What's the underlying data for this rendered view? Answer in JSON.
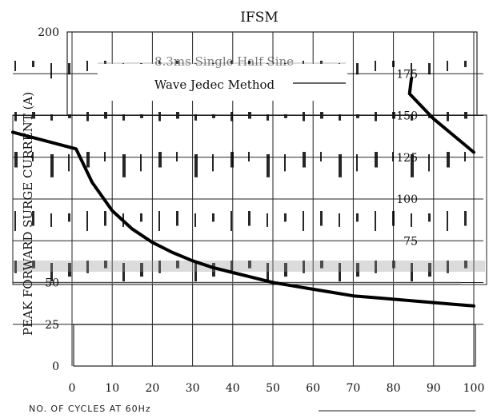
{
  "chart_data": {
    "type": "line",
    "title": "IFSM",
    "annotation": "8.3ms Single Half Sine Wave Jedec Method",
    "annotation_line1": "8.3ms Single Half Sine",
    "annotation_line2": "Wave Jedec Method",
    "ylabel": "PEAK FORWARD SURGE CURRENT (A)",
    "xlabel": "NO. OF CYCLES AT 60Hz",
    "xlim": [
      0,
      100
    ],
    "ylim": [
      0,
      200
    ],
    "x_ticks": [
      0,
      10,
      20,
      30,
      40,
      50,
      60,
      70,
      80,
      90,
      100
    ],
    "y_ticks_left": [
      0,
      25,
      50,
      200
    ],
    "y_ticks_inner": [
      75,
      100,
      125,
      150,
      175
    ],
    "grid": true,
    "series": [
      {
        "x": [
          1,
          5,
          10,
          15,
          20,
          25,
          30,
          35,
          40,
          45,
          50,
          55,
          60,
          65,
          70,
          75,
          80,
          85,
          90,
          95,
          100
        ],
        "values": [
          130,
          110,
          93,
          82,
          74,
          68,
          63,
          59,
          56,
          53,
          50,
          48,
          46,
          44,
          42,
          41,
          40,
          39,
          38,
          37,
          36
        ]
      }
    ],
    "secondary_series": [
      {
        "x": [
          84,
          90,
          95,
          100
        ],
        "values": [
          163,
          148,
          138,
          128
        ]
      }
    ]
  }
}
